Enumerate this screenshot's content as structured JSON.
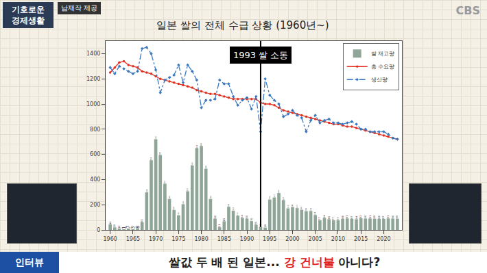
{
  "overlay": {
    "logo": [
      "기호로운",
      "경제생활"
    ],
    "credit": "남재작 제공",
    "broadcaster": "CBS",
    "tag": "인터뷰",
    "headline": [
      {
        "text": "쌀값 두 배 된 일본... "
      },
      {
        "text": "강 건너불",
        "color": "#e0201b"
      },
      {
        "text": " 아니다?"
      }
    ]
  },
  "chart_data": {
    "type": "combo",
    "title": "일본 쌀의 전체 수급 상황 (1960년~)",
    "x": [
      1960,
      1961,
      1962,
      1963,
      1964,
      1965,
      1966,
      1967,
      1968,
      1969,
      1970,
      1971,
      1972,
      1973,
      1974,
      1975,
      1976,
      1977,
      1978,
      1979,
      1980,
      1981,
      1982,
      1983,
      1984,
      1985,
      1986,
      1987,
      1988,
      1989,
      1990,
      1991,
      1992,
      1993,
      1994,
      1995,
      1996,
      1997,
      1998,
      1999,
      2000,
      2001,
      2002,
      2003,
      2004,
      2005,
      2006,
      2007,
      2008,
      2009,
      2010,
      2011,
      2012,
      2013,
      2014,
      2015,
      2016,
      2017,
      2018,
      2019,
      2020,
      2021,
      2022,
      2023
    ],
    "series": [
      {
        "name": "쌀 재고량",
        "type": "bar",
        "color": "#8fa597",
        "data_labels": true,
        "values": [
          44,
          20,
          10,
          1,
          7,
          3,
          8,
          61,
          298,
          553,
          720,
          595,
          367,
          246,
          158,
          116,
          204,
          307,
          512,
          650,
          666,
          486,
          246,
          90,
          21,
          69,
          183,
          153,
          113,
          94,
          90,
          70,
          41,
          23,
          19,
          241,
          257,
          293,
          237,
          171,
          181,
          173,
          160,
          149,
          150,
          118,
          77,
          94,
          85,
          77,
          77,
          88,
          91,
          87,
          84,
          92,
          90,
          91,
          89,
          88,
          87,
          91,
          90,
          89
        ]
      },
      {
        "name": "총 수요량",
        "type": "line",
        "color": "#e03020",
        "marker": "circle",
        "line_style": "solid",
        "values": [
          1250,
          1290,
          1330,
          1340,
          1310,
          1300,
          1290,
          1260,
          1250,
          1240,
          1220,
          1200,
          1190,
          1180,
          1170,
          1160,
          1150,
          1140,
          1130,
          1110,
          1100,
          1090,
          1080,
          1080,
          1070,
          1060,
          1050,
          1040,
          1040,
          1040,
          1040,
          1040,
          1040,
          1010,
          1000,
          1000,
          990,
          970,
          950,
          940,
          930,
          920,
          910,
          900,
          890,
          880,
          870,
          860,
          850,
          840,
          840,
          830,
          820,
          820,
          810,
          800,
          790,
          780,
          770,
          760,
          750,
          740,
          730,
          720
        ]
      },
      {
        "name": "생산량",
        "type": "line",
        "color": "#3a78c0",
        "marker": "diamond",
        "line_style": "dashdot",
        "values": [
          1290,
          1240,
          1300,
          1280,
          1260,
          1240,
          1260,
          1440,
          1450,
          1400,
          1270,
          1090,
          1190,
          1210,
          1230,
          1310,
          1170,
          1310,
          1260,
          1190,
          970,
          1030,
          1030,
          1040,
          1190,
          1160,
          1160,
          1060,
          990,
          1030,
          1050,
          960,
          1060,
          780,
          1200,
          1070,
          1030,
          1000,
          900,
          920,
          950,
          910,
          890,
          780,
          870,
          910,
          850,
          870,
          880,
          850,
          850,
          840,
          850,
          860,
          840,
          800,
          800,
          780,
          780,
          780,
          780,
          760,
          730,
          720
        ]
      }
    ],
    "xlim": [
      1959,
      2024
    ],
    "xticks": [
      1960,
      1965,
      1970,
      1975,
      1980,
      1985,
      1990,
      1995,
      2000,
      2005,
      2010,
      2015,
      2020
    ],
    "ylim": [
      0,
      1500
    ],
    "yticks": [
      0,
      200,
      400,
      600,
      800,
      1000,
      1200,
      1400
    ],
    "grid": false,
    "legend": "upper right",
    "annotations": [
      {
        "text": "1993 쌀 소동",
        "x": 1993
      }
    ]
  }
}
